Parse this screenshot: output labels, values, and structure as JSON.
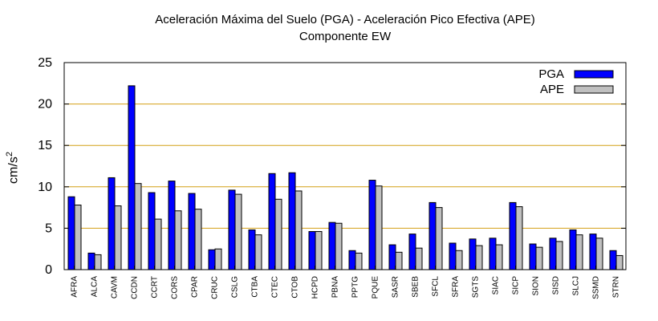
{
  "chart_data": {
    "type": "bar",
    "title": "Aceleración Máxima del Suelo (PGA) -  Aceleración Pico Efectiva (APE)",
    "subtitle": "Componente EW",
    "ylabel_base": "cm/s",
    "ylabel_sup": "2",
    "ylim": [
      0,
      25
    ],
    "yticks": [
      0,
      5,
      10,
      15,
      20,
      25
    ],
    "grid": true,
    "grid_color": "#d4a017",
    "legend_position": "top-right",
    "categories": [
      "AFRA",
      "ALCA",
      "CAVM",
      "CCDN",
      "CCRT",
      "CORS",
      "CPAR",
      "CRUC",
      "CSLG",
      "CTBA",
      "CTEC",
      "CTOB",
      "HCPD",
      "PBNA",
      "PPTG",
      "PQUE",
      "SASR",
      "SBEB",
      "SFCL",
      "SFRA",
      "SGTS",
      "SIAC",
      "SICP",
      "SION",
      "SISD",
      "SLCJ",
      "SSMD",
      "STRN"
    ],
    "series": [
      {
        "name": "PGA",
        "color": "#0000ff",
        "values": [
          8.8,
          2.0,
          11.1,
          22.2,
          9.3,
          10.7,
          9.2,
          2.4,
          9.6,
          4.8,
          11.6,
          11.7,
          4.6,
          5.7,
          2.3,
          10.8,
          3.0,
          4.3,
          8.1,
          3.2,
          3.7,
          3.8,
          8.1,
          3.1,
          3.8,
          4.8,
          4.3,
          2.3
        ]
      },
      {
        "name": "APE",
        "color": "#c0c0c0",
        "values": [
          7.8,
          1.8,
          7.7,
          10.4,
          6.1,
          7.1,
          7.3,
          2.5,
          9.1,
          4.2,
          8.5,
          9.5,
          4.6,
          5.6,
          2.0,
          10.1,
          2.1,
          2.6,
          7.5,
          2.3,
          2.9,
          3.0,
          7.6,
          2.7,
          3.4,
          4.2,
          3.8,
          1.7
        ]
      }
    ]
  }
}
